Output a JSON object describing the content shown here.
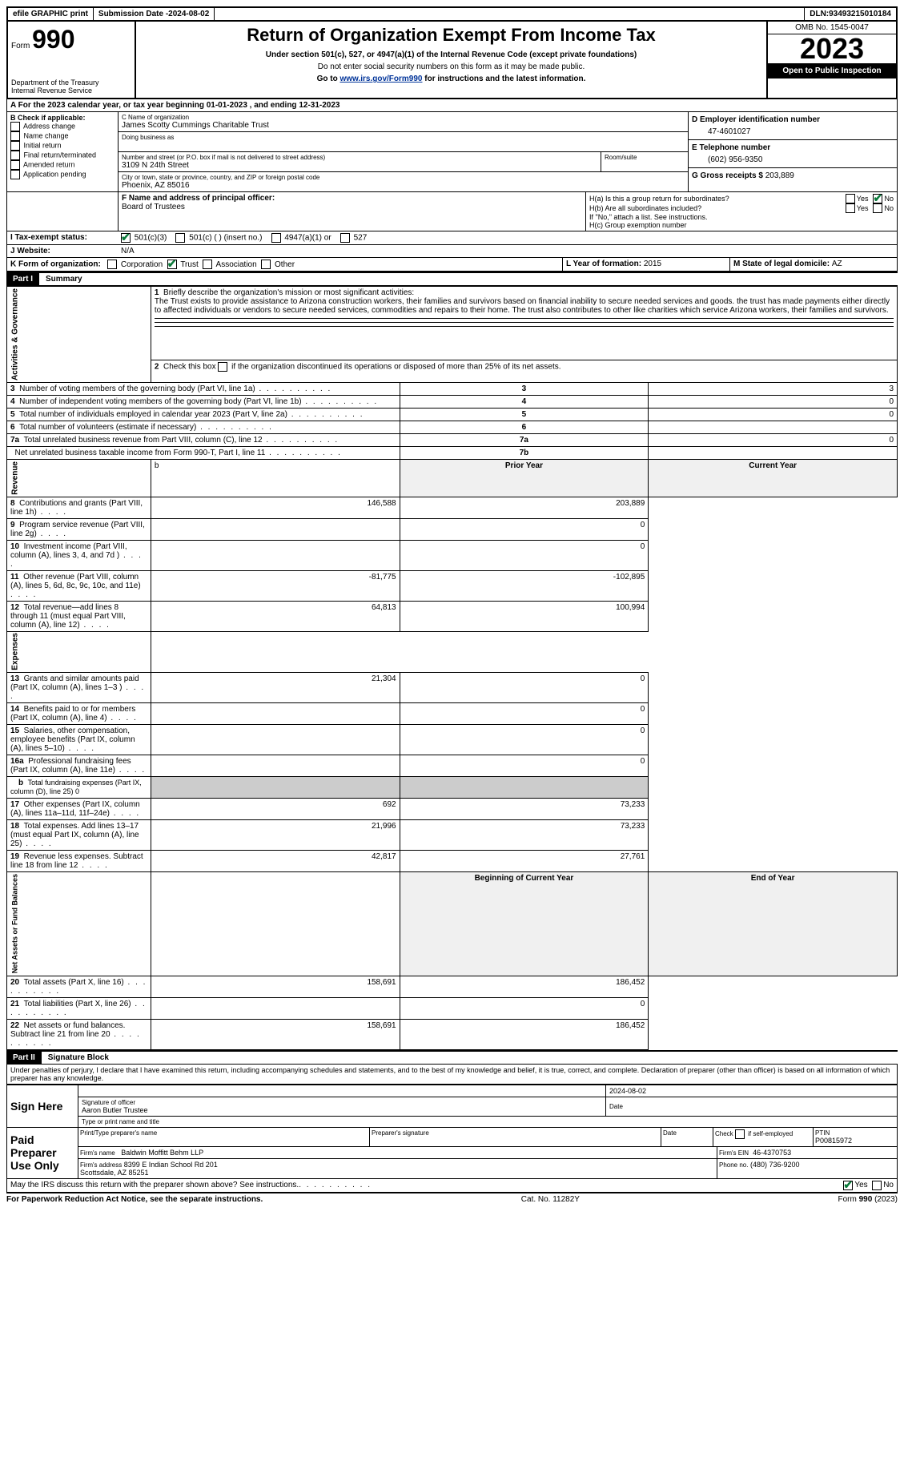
{
  "topbar": {
    "efile": "efile GRAPHIC print",
    "submission_label": "Submission Date - ",
    "submission_date": "2024-08-02",
    "dln_label": "DLN: ",
    "dln": "93493215010184"
  },
  "header": {
    "form_label": "Form",
    "form_number": "990",
    "dept": "Department of the Treasury\nInternal Revenue Service",
    "title": "Return of Organization Exempt From Income Tax",
    "subtitle": "Under section 501(c), 527, or 4947(a)(1) of the Internal Revenue Code (except private foundations)",
    "warn": "Do not enter social security numbers on this form as it may be made public.",
    "goto_prefix": "Go to ",
    "goto_link": "www.irs.gov/Form990",
    "goto_suffix": " for instructions and the latest information.",
    "omb": "OMB No. 1545-0047",
    "year": "2023",
    "inspection": "Open to Public Inspection"
  },
  "sectionA": {
    "a_line": "A For the 2023 calendar year, or tax year beginning 01-01-2023   , and ending 12-31-2023",
    "b_label": "B Check if applicable:",
    "b_items": [
      "Address change",
      "Name change",
      "Initial return",
      "Final return/terminated",
      "Amended return",
      "Application pending"
    ],
    "c_label": "C Name of organization",
    "org_name": "James Scotty Cummings Charitable Trust",
    "dba_label": "Doing business as",
    "street_label": "Number and street (or P.O. box if mail is not delivered to street address)",
    "room_label": "Room/suite",
    "street": "3109 N 24th Street",
    "city_label": "City or town, state or province, country, and ZIP or foreign postal code",
    "city": "Phoenix, AZ  85016",
    "d_label": "D Employer identification number",
    "ein": "47-4601027",
    "e_label": "E Telephone number",
    "phone": "(602) 956-9350",
    "g_label": "G Gross receipts $ ",
    "gross": "203,889",
    "f_label": "F  Name and address of principal officer:",
    "officer": "Board of Trustees",
    "ha_label": "H(a)  Is this a group return for subordinates?",
    "hb_label": "H(b)  Are all subordinates included?",
    "hb_note": "If \"No,\" attach a list. See instructions.",
    "hc_label": "H(c)  Group exemption number",
    "yes": "Yes",
    "no": "No",
    "i_label": "I  Tax-exempt status:",
    "i_501c3": "501(c)(3)",
    "i_501c": "501(c) (  ) (insert no.)",
    "i_4947": "4947(a)(1) or",
    "i_527": "527",
    "j_label": "J  Website:",
    "website": "N/A",
    "k_label": "K Form of organization:",
    "k_items": [
      "Corporation",
      "Trust",
      "Association",
      "Other"
    ],
    "l_label": "L Year of formation: ",
    "l_val": "2015",
    "m_label": "M State of legal domicile: ",
    "m_val": "AZ"
  },
  "part1": {
    "label": "Part I",
    "title": "Summary",
    "q1_label": "1",
    "q1_text": "Briefly describe the organization's mission or most significant activities:",
    "mission": "The Trust exists to provide assistance to Arizona construction workers, their families and survivors based on financial inability to secure needed services and goods. the trust has made payments either directly to affected individuals or vendors to secure needed services, commodities and repairs to their home. The trust also contributes to other like charities which service Arizona workers, their families and survivors.",
    "q2_label": "2",
    "q2_text": "Check this box        if the organization discontinued its operations or disposed of more than 25% of its net assets.",
    "governance_label": "Activities & Governance",
    "revenue_label": "Revenue",
    "expenses_label": "Expenses",
    "netassets_label": "Net Assets or Fund Balances",
    "rows_gov": [
      {
        "n": "3",
        "t": "Number of voting members of the governing body (Part VI, line 1a)",
        "rn": "3",
        "v": "3"
      },
      {
        "n": "4",
        "t": "Number of independent voting members of the governing body (Part VI, line 1b)",
        "rn": "4",
        "v": "0"
      },
      {
        "n": "5",
        "t": "Total number of individuals employed in calendar year 2023 (Part V, line 2a)",
        "rn": "5",
        "v": "0"
      },
      {
        "n": "6",
        "t": "Total number of volunteers (estimate if necessary)",
        "rn": "6",
        "v": ""
      },
      {
        "n": "7a",
        "t": "Total unrelated business revenue from Part VIII, column (C), line 12",
        "rn": "7a",
        "v": "0"
      },
      {
        "n": "",
        "t": "Net unrelated business taxable income from Form 990-T, Part I, line 11",
        "rn": "7b",
        "v": ""
      }
    ],
    "prior_year": "Prior Year",
    "current_year": "Current Year",
    "rows_rev": [
      {
        "n": "8",
        "t": "Contributions and grants (Part VIII, line 1h)",
        "py": "146,588",
        "cy": "203,889"
      },
      {
        "n": "9",
        "t": "Program service revenue (Part VIII, line 2g)",
        "py": "",
        "cy": "0"
      },
      {
        "n": "10",
        "t": "Investment income (Part VIII, column (A), lines 3, 4, and 7d )",
        "py": "",
        "cy": "0"
      },
      {
        "n": "11",
        "t": "Other revenue (Part VIII, column (A), lines 5, 6d, 8c, 9c, 10c, and 11e)",
        "py": "-81,775",
        "cy": "-102,895"
      },
      {
        "n": "12",
        "t": "Total revenue—add lines 8 through 11 (must equal Part VIII, column (A), line 12)",
        "py": "64,813",
        "cy": "100,994"
      }
    ],
    "rows_exp": [
      {
        "n": "13",
        "t": "Grants and similar amounts paid (Part IX, column (A), lines 1–3 )",
        "py": "21,304",
        "cy": "0"
      },
      {
        "n": "14",
        "t": "Benefits paid to or for members (Part IX, column (A), line 4)",
        "py": "",
        "cy": "0"
      },
      {
        "n": "15",
        "t": "Salaries, other compensation, employee benefits (Part IX, column (A), lines 5–10)",
        "py": "",
        "cy": "0"
      },
      {
        "n": "16a",
        "t": "Professional fundraising fees (Part IX, column (A), line 11e)",
        "py": "",
        "cy": "0"
      }
    ],
    "row_16b_n": "b",
    "row_16b_t": "Total fundraising expenses (Part IX, column (D), line 25) 0",
    "rows_exp2": [
      {
        "n": "17",
        "t": "Other expenses (Part IX, column (A), lines 11a–11d, 11f–24e)",
        "py": "692",
        "cy": "73,233"
      },
      {
        "n": "18",
        "t": "Total expenses. Add lines 13–17 (must equal Part IX, column (A), line 25)",
        "py": "21,996",
        "cy": "73,233"
      },
      {
        "n": "19",
        "t": "Revenue less expenses. Subtract line 18 from line 12",
        "py": "42,817",
        "cy": "27,761"
      }
    ],
    "begin_year": "Beginning of Current Year",
    "end_year": "End of Year",
    "rows_net": [
      {
        "n": "20",
        "t": "Total assets (Part X, line 16)",
        "py": "158,691",
        "cy": "186,452"
      },
      {
        "n": "21",
        "t": "Total liabilities (Part X, line 26)",
        "py": "",
        "cy": "0"
      },
      {
        "n": "22",
        "t": "Net assets or fund balances. Subtract line 21 from line 20",
        "py": "158,691",
        "cy": "186,452"
      }
    ]
  },
  "part2": {
    "label": "Part II",
    "title": "Signature Block",
    "declaration": "Under penalties of perjury, I declare that I have examined this return, including accompanying schedules and statements, and to the best of my knowledge and belief, it is true, correct, and complete. Declaration of preparer (other than officer) is based on all information of which preparer has any knowledge.",
    "sign_here": "Sign Here",
    "sig_date": "2024-08-02",
    "sig_officer_label": "Signature of officer",
    "sig_officer": "Aaron Butler Trustee",
    "sig_name_label": "Type or print name and title",
    "sig_date_label": "Date",
    "paid_label": "Paid Preparer Use Only",
    "prep_name_label": "Print/Type preparer's name",
    "prep_sig_label": "Preparer's signature",
    "prep_date_label": "Date",
    "check_self": "Check         if self-employed",
    "ptin_label": "PTIN",
    "ptin": "P00815972",
    "firm_name_label": "Firm's name",
    "firm_name": "Baldwin Moffitt Behm LLP",
    "firm_ein_label": "Firm's EIN",
    "firm_ein": "46-4370753",
    "firm_addr_label": "Firm's address",
    "firm_addr": "8399 E Indian School Rd 201\nScottsdale, AZ  85251",
    "firm_phone_label": "Phone no.",
    "firm_phone": "(480) 736-9200",
    "discuss": "May the IRS discuss this return with the preparer shown above? See instructions."
  },
  "footer": {
    "paperwork": "For Paperwork Reduction Act Notice, see the separate instructions.",
    "cat": "Cat. No. 11282Y",
    "form": "Form 990 (2023)"
  }
}
